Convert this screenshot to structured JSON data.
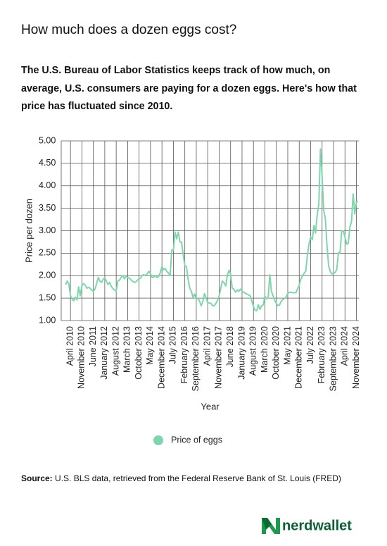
{
  "title": "How much does a dozen eggs cost?",
  "subtitle": "The U.S. Bureau of Labor Statistics keeps track of how much, on average, U.S. consumers are paying for a dozen eggs. Here's how that price has fluctuated since 2010.",
  "chart_data": {
    "type": "line",
    "x_label": "Year",
    "y_label": "Price per dozen",
    "categories": [
      null,
      null,
      null,
      "April 2010",
      null,
      null,
      null,
      null,
      null,
      null,
      "November 2010",
      null,
      null,
      null,
      null,
      null,
      null,
      "June 2011",
      null,
      null,
      null,
      null,
      null,
      null,
      "January 2012",
      null,
      null,
      null,
      null,
      null,
      null,
      "August 2012",
      null,
      null,
      null,
      null,
      null,
      null,
      "March 2013",
      null,
      null,
      null,
      null,
      null,
      null,
      "October 2013",
      null,
      null,
      null,
      null,
      null,
      null,
      "May 2014",
      null,
      null,
      null,
      null,
      null,
      null,
      "December 2014",
      null,
      null,
      null,
      null,
      null,
      null,
      "July 2015",
      null,
      null,
      null,
      null,
      null,
      null,
      "February 2016",
      null,
      null,
      null,
      null,
      null,
      null,
      "September 2016",
      null,
      null,
      null,
      null,
      null,
      null,
      "April 2017",
      null,
      null,
      null,
      null,
      null,
      null,
      "November 2017",
      null,
      null,
      null,
      null,
      null,
      null,
      "June 2018",
      null,
      null,
      null,
      null,
      null,
      null,
      "January 2019",
      null,
      null,
      null,
      null,
      null,
      null,
      "August 2019",
      null,
      null,
      null,
      null,
      null,
      null,
      "March 2020",
      null,
      null,
      null,
      null,
      null,
      null,
      "October 2020",
      null,
      null,
      null,
      null,
      null,
      null,
      "May 2021",
      null,
      null,
      null,
      null,
      null,
      null,
      "December 2021",
      null,
      null,
      null,
      null,
      null,
      null,
      "July 2022",
      null,
      null,
      null,
      null,
      null,
      null,
      "February 2023",
      null,
      null,
      null,
      null,
      null,
      null,
      "September 2023",
      null,
      null,
      null,
      null,
      null,
      null,
      "April 2024",
      null,
      null,
      null,
      null,
      null,
      null,
      "November 2024",
      null
    ],
    "series": [
      {
        "name": "Price of eggs",
        "color": "#80d6ac",
        "values": [
          1.8,
          1.88,
          1.82,
          1.55,
          1.48,
          1.44,
          1.52,
          1.46,
          1.75,
          1.55,
          1.78,
          1.82,
          1.79,
          1.72,
          1.74,
          1.72,
          1.68,
          1.65,
          1.7,
          1.82,
          1.96,
          1.88,
          1.85,
          1.92,
          1.95,
          1.88,
          1.8,
          1.85,
          1.76,
          1.71,
          1.68,
          1.66,
          1.88,
          1.9,
          1.96,
          2.0,
          1.93,
          1.99,
          1.96,
          1.95,
          1.91,
          1.88,
          1.85,
          1.86,
          1.9,
          1.93,
          1.95,
          2.01,
          2.02,
          2.0,
          2.04,
          2.1,
          2.04,
          1.96,
          1.97,
          1.99,
          1.96,
          1.98,
          2.07,
          2.21,
          2.13,
          2.16,
          2.09,
          2.06,
          2.0,
          2.57,
          2.57,
          2.97,
          2.82,
          2.97,
          2.75,
          2.75,
          2.47,
          2.23,
          2.2,
          1.92,
          1.72,
          1.65,
          1.52,
          1.59,
          1.47,
          1.5,
          1.43,
          1.33,
          1.42,
          1.6,
          1.51,
          1.4,
          1.39,
          1.38,
          1.33,
          1.33,
          1.38,
          1.45,
          1.55,
          1.72,
          1.88,
          1.84,
          1.77,
          2.0,
          2.12,
          2.04,
          1.72,
          1.7,
          1.63,
          1.68,
          1.65,
          1.7,
          1.66,
          1.63,
          1.61,
          1.59,
          1.57,
          1.55,
          1.43,
          1.31,
          1.23,
          1.22,
          1.35,
          1.25,
          1.33,
          1.35,
          1.55,
          1.48,
          1.51,
          2.02,
          1.65,
          1.55,
          1.45,
          1.38,
          1.33,
          1.35,
          1.43,
          1.47,
          1.49,
          1.53,
          1.6,
          1.63,
          1.63,
          1.62,
          1.62,
          1.62,
          1.71,
          1.79,
          1.93,
          2.0,
          2.05,
          2.1,
          2.45,
          2.71,
          2.86,
          2.8,
          3.12,
          2.95,
          3.35,
          3.59,
          4.82,
          4.21,
          3.45,
          3.27,
          2.67,
          2.22,
          2.09,
          2.04,
          2.06,
          2.07,
          2.14,
          2.51,
          2.52,
          3.0,
          2.99,
          2.86,
          2.7,
          2.72,
          3.08,
          3.2,
          3.82,
          3.37,
          3.65,
          3.65
        ]
      }
    ],
    "ylim": [
      1,
      5
    ],
    "yticks": [
      {
        "value": 1,
        "label": "1.00"
      },
      {
        "value": 1.5,
        "label": "1.50"
      },
      {
        "value": 2,
        "label": "2.00"
      },
      {
        "value": 2.5,
        "label": "2.50"
      },
      {
        "value": 3,
        "label": "3.00"
      },
      {
        "value": 3.5,
        "label": "3.50"
      },
      {
        "value": 4,
        "label": "4.00"
      },
      {
        "value": 4.5,
        "label": "4.50"
      },
      {
        "value": 5,
        "label": "5.00"
      }
    ],
    "grid": true,
    "legend": "bottom"
  },
  "source_label": "Source:",
  "source_text": "U.S. BLS data, retrieved from the Federal Reserve Bank of St. Louis (FRED)",
  "logo": "nerdwallet"
}
